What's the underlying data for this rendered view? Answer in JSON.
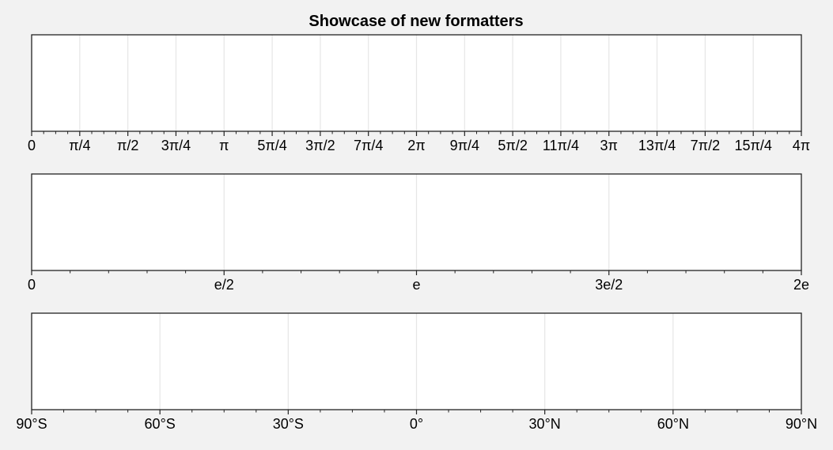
{
  "chart_data": {
    "title": "Showcase of new formatters",
    "panels": [
      {
        "type": "axis",
        "formatter": "pi fractions",
        "xlim": [
          0,
          4
        ],
        "major_step": 0.25,
        "minor_per_major": 3,
        "grid": true,
        "ticks": [
          {
            "value": 0,
            "label": "0"
          },
          {
            "value": 0.25,
            "label": "π/4"
          },
          {
            "value": 0.5,
            "label": "π/2"
          },
          {
            "value": 0.75,
            "label": "3π/4"
          },
          {
            "value": 1,
            "label": "π"
          },
          {
            "value": 1.25,
            "label": "5π/4"
          },
          {
            "value": 1.5,
            "label": "3π/2"
          },
          {
            "value": 1.75,
            "label": "7π/4"
          },
          {
            "value": 2,
            "label": "2π"
          },
          {
            "value": 2.25,
            "label": "9π/4"
          },
          {
            "value": 2.5,
            "label": "5π/2"
          },
          {
            "value": 2.75,
            "label": "11π/4"
          },
          {
            "value": 3,
            "label": "3π"
          },
          {
            "value": 3.25,
            "label": "13π/4"
          },
          {
            "value": 3.5,
            "label": "7π/2"
          },
          {
            "value": 3.75,
            "label": "15π/4"
          },
          {
            "value": 4,
            "label": "4π"
          }
        ]
      },
      {
        "type": "axis",
        "formatter": "e fractions",
        "xlim": [
          0,
          2
        ],
        "major_step": 0.5,
        "minor_per_major": 4,
        "grid": true,
        "ticks": [
          {
            "value": 0,
            "label": "0"
          },
          {
            "value": 0.5,
            "label": "e/2"
          },
          {
            "value": 1,
            "label": "e"
          },
          {
            "value": 1.5,
            "label": "3e/2"
          },
          {
            "value": 2,
            "label": "2e"
          }
        ]
      },
      {
        "type": "axis",
        "formatter": "latitude",
        "xlim": [
          -90,
          90
        ],
        "major_step": 30,
        "minor_per_major": 3,
        "grid": true,
        "ticks": [
          {
            "value": -90,
            "label": "90°S"
          },
          {
            "value": -60,
            "label": "60°S"
          },
          {
            "value": -30,
            "label": "30°S"
          },
          {
            "value": 0,
            "label": "0°"
          },
          {
            "value": 30,
            "label": "30°N"
          },
          {
            "value": 60,
            "label": "60°N"
          },
          {
            "value": 90,
            "label": "90°N"
          }
        ]
      }
    ]
  },
  "colors": {
    "figure_background": "#f2f2f2",
    "axes_background": "#ffffff",
    "frame": "#222222",
    "grid": "#e6e6e6"
  }
}
